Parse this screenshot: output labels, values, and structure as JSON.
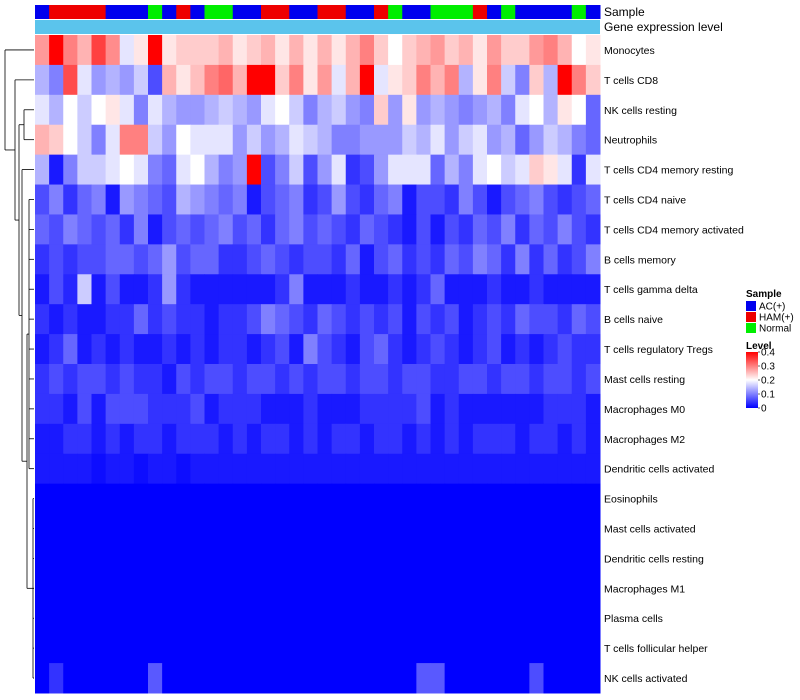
{
  "chart_data": {
    "type": "heatmap",
    "title": "",
    "annotation_tracks": [
      "Sample",
      "Gene expression level"
    ],
    "sample_groups": [
      "AC(+)",
      "HAM(+)",
      "HAM(+)",
      "HAM(+)",
      "HAM(+)",
      "AC(+)",
      "AC(+)",
      "AC(+)",
      "Normal",
      "AC(+)",
      "HAM(+)",
      "AC(+)",
      "Normal",
      "Normal",
      "AC(+)",
      "AC(+)",
      "HAM(+)",
      "HAM(+)",
      "AC(+)",
      "AC(+)",
      "HAM(+)",
      "HAM(+)",
      "AC(+)",
      "AC(+)",
      "HAM(+)",
      "Normal",
      "AC(+)",
      "AC(+)",
      "Normal",
      "Normal",
      "Normal",
      "HAM(+)",
      "AC(+)",
      "Normal",
      "AC(+)",
      "AC(+)",
      "AC(+)",
      "AC(+)",
      "Normal",
      "AC(+)"
    ],
    "rows": [
      "Monocytes",
      "T cells CD8",
      "NK cells resting",
      "Neutrophils",
      "T cells CD4 memory resting",
      "T cells CD4 naive",
      "T cells CD4 memory activated",
      "B cells memory",
      "T cells gamma delta",
      "B cells naive",
      "T cells regulatory  Tregs",
      "Mast cells resting",
      "Macrophages M0",
      "Macrophages M2",
      "Dendritic cells activated",
      "Eosinophils",
      "Mast cells activated",
      "Dendritic cells resting",
      "Macrophages M1",
      "Plasma cells",
      "T cells follicular helper",
      "NK cells activated"
    ],
    "values": [
      [
        0.28,
        0.4,
        0.3,
        0.26,
        0.35,
        0.29,
        0.18,
        0.22,
        0.4,
        0.22,
        0.24,
        0.24,
        0.24,
        0.26,
        0.22,
        0.24,
        0.26,
        0.22,
        0.26,
        0.22,
        0.26,
        0.22,
        0.26,
        0.3,
        0.24,
        0.2,
        0.24,
        0.26,
        0.28,
        0.24,
        0.26,
        0.22,
        0.28,
        0.24,
        0.24,
        0.28,
        0.3,
        0.26,
        0.2,
        0.22
      ],
      [
        0.14,
        0.1,
        0.34,
        0.18,
        0.12,
        0.14,
        0.12,
        0.16,
        0.06,
        0.26,
        0.22,
        0.25,
        0.3,
        0.32,
        0.26,
        0.4,
        0.4,
        0.24,
        0.3,
        0.22,
        0.28,
        0.18,
        0.26,
        0.4,
        0.18,
        0.22,
        0.24,
        0.3,
        0.26,
        0.3,
        0.14,
        0.22,
        0.3,
        0.16,
        0.1,
        0.24,
        0.14,
        0.4,
        0.3,
        0.24
      ],
      [
        0.18,
        0.14,
        0.2,
        0.16,
        0.2,
        0.22,
        0.18,
        0.1,
        0.18,
        0.14,
        0.12,
        0.12,
        0.14,
        0.16,
        0.14,
        0.12,
        0.18,
        0.2,
        0.16,
        0.1,
        0.14,
        0.16,
        0.12,
        0.1,
        0.24,
        0.12,
        0.22,
        0.12,
        0.14,
        0.12,
        0.1,
        0.12,
        0.14,
        0.1,
        0.18,
        0.2,
        0.14,
        0.22,
        0.2,
        0.08
      ],
      [
        0.26,
        0.24,
        0.2,
        0.16,
        0.1,
        0.18,
        0.3,
        0.3,
        0.16,
        0.12,
        0.2,
        0.18,
        0.18,
        0.18,
        0.12,
        0.16,
        0.12,
        0.14,
        0.18,
        0.16,
        0.14,
        0.1,
        0.1,
        0.12,
        0.12,
        0.12,
        0.16,
        0.14,
        0.18,
        0.12,
        0.16,
        0.18,
        0.12,
        0.14,
        0.08,
        0.12,
        0.16,
        0.14,
        0.1,
        0.08
      ],
      [
        0.14,
        0.02,
        0.1,
        0.16,
        0.16,
        0.18,
        0.2,
        0.18,
        0.1,
        0.08,
        0.18,
        0.2,
        0.14,
        0.1,
        0.12,
        0.4,
        0.06,
        0.1,
        0.16,
        0.06,
        0.12,
        0.18,
        0.04,
        0.06,
        0.12,
        0.18,
        0.18,
        0.18,
        0.08,
        0.14,
        0.1,
        0.18,
        0.2,
        0.16,
        0.18,
        0.24,
        0.22,
        0.18,
        0.04,
        0.18
      ],
      [
        0.06,
        0.1,
        0.04,
        0.08,
        0.1,
        0.02,
        0.12,
        0.1,
        0.08,
        0.06,
        0.14,
        0.12,
        0.1,
        0.08,
        0.1,
        0.02,
        0.06,
        0.08,
        0.1,
        0.04,
        0.06,
        0.12,
        0.06,
        0.04,
        0.08,
        0.1,
        0.02,
        0.06,
        0.06,
        0.04,
        0.1,
        0.06,
        0.02,
        0.06,
        0.08,
        0.1,
        0.06,
        0.04,
        0.06,
        0.08
      ],
      [
        0.08,
        0.06,
        0.1,
        0.08,
        0.06,
        0.08,
        0.04,
        0.1,
        0.02,
        0.06,
        0.08,
        0.06,
        0.08,
        0.1,
        0.06,
        0.08,
        0.04,
        0.08,
        0.1,
        0.06,
        0.08,
        0.06,
        0.04,
        0.08,
        0.06,
        0.04,
        0.02,
        0.06,
        0.02,
        0.06,
        0.04,
        0.08,
        0.06,
        0.1,
        0.04,
        0.08,
        0.06,
        0.1,
        0.06,
        0.04
      ],
      [
        0.04,
        0.06,
        0.04,
        0.06,
        0.06,
        0.08,
        0.08,
        0.06,
        0.08,
        0.12,
        0.06,
        0.08,
        0.08,
        0.04,
        0.04,
        0.06,
        0.08,
        0.06,
        0.04,
        0.06,
        0.06,
        0.04,
        0.08,
        0.02,
        0.06,
        0.08,
        0.04,
        0.06,
        0.04,
        0.08,
        0.06,
        0.1,
        0.08,
        0.04,
        0.1,
        0.04,
        0.08,
        0.04,
        0.06,
        0.1
      ],
      [
        0.02,
        0.06,
        0.03,
        0.16,
        0.02,
        0.06,
        0.02,
        0.02,
        0.04,
        0.12,
        0.04,
        0.02,
        0.02,
        0.02,
        0.02,
        0.02,
        0.02,
        0.04,
        0.1,
        0.02,
        0.02,
        0.02,
        0.04,
        0.02,
        0.02,
        0.04,
        0.02,
        0.04,
        0.08,
        0.02,
        0.02,
        0.02,
        0.04,
        0.02,
        0.02,
        0.04,
        0.02,
        0.02,
        0.02,
        0.02
      ],
      [
        0.04,
        0.02,
        0.04,
        0.02,
        0.02,
        0.04,
        0.04,
        0.08,
        0.04,
        0.06,
        0.04,
        0.04,
        0.02,
        0.04,
        0.04,
        0.06,
        0.1,
        0.08,
        0.06,
        0.04,
        0.08,
        0.06,
        0.04,
        0.06,
        0.04,
        0.06,
        0.02,
        0.06,
        0.04,
        0.06,
        0.02,
        0.04,
        0.06,
        0.04,
        0.08,
        0.06,
        0.06,
        0.04,
        0.08,
        0.06
      ],
      [
        0.02,
        0.04,
        0.08,
        0.02,
        0.04,
        0.02,
        0.04,
        0.02,
        0.02,
        0.04,
        0.02,
        0.04,
        0.02,
        0.04,
        0.04,
        0.02,
        0.04,
        0.06,
        0.02,
        0.1,
        0.06,
        0.04,
        0.02,
        0.06,
        0.08,
        0.04,
        0.02,
        0.04,
        0.06,
        0.04,
        0.02,
        0.04,
        0.06,
        0.02,
        0.04,
        0.02,
        0.04,
        0.06,
        0.04,
        0.04
      ],
      [
        0.04,
        0.06,
        0.04,
        0.06,
        0.06,
        0.04,
        0.06,
        0.04,
        0.04,
        0.02,
        0.06,
        0.04,
        0.06,
        0.06,
        0.04,
        0.06,
        0.06,
        0.04,
        0.06,
        0.04,
        0.06,
        0.06,
        0.04,
        0.06,
        0.06,
        0.04,
        0.06,
        0.06,
        0.04,
        0.04,
        0.06,
        0.06,
        0.04,
        0.06,
        0.06,
        0.04,
        0.06,
        0.06,
        0.04,
        0.06
      ],
      [
        0.04,
        0.04,
        0.02,
        0.06,
        0.02,
        0.06,
        0.06,
        0.06,
        0.04,
        0.04,
        0.04,
        0.06,
        0.02,
        0.04,
        0.04,
        0.04,
        0.02,
        0.02,
        0.02,
        0.04,
        0.02,
        0.02,
        0.02,
        0.04,
        0.04,
        0.04,
        0.04,
        0.06,
        0.02,
        0.04,
        0.02,
        0.02,
        0.02,
        0.02,
        0.02,
        0.02,
        0.04,
        0.04,
        0.04,
        0.02
      ],
      [
        0.02,
        0.02,
        0.04,
        0.04,
        0.02,
        0.04,
        0.02,
        0.04,
        0.04,
        0.02,
        0.04,
        0.04,
        0.04,
        0.02,
        0.04,
        0.02,
        0.04,
        0.04,
        0.02,
        0.04,
        0.02,
        0.04,
        0.04,
        0.02,
        0.04,
        0.04,
        0.02,
        0.04,
        0.02,
        0.04,
        0.02,
        0.04,
        0.04,
        0.04,
        0.02,
        0.04,
        0.04,
        0.02,
        0.04,
        0.02
      ],
      [
        0.02,
        0.02,
        0.02,
        0.02,
        0.01,
        0.02,
        0.02,
        0.01,
        0.02,
        0.02,
        0.01,
        0.02,
        0.02,
        0.02,
        0.02,
        0.02,
        0.02,
        0.02,
        0.02,
        0.02,
        0.02,
        0.02,
        0.02,
        0.02,
        0.02,
        0.02,
        0.02,
        0.02,
        0.02,
        0.02,
        0.02,
        0.02,
        0.02,
        0.02,
        0.02,
        0.02,
        0.02,
        0.02,
        0.02,
        0.02
      ],
      [
        0,
        0,
        0,
        0,
        0,
        0,
        0,
        0,
        0,
        0,
        0,
        0,
        0,
        0,
        0,
        0,
        0,
        0,
        0,
        0,
        0,
        0,
        0,
        0,
        0,
        0,
        0,
        0,
        0,
        0,
        0,
        0,
        0,
        0,
        0,
        0,
        0,
        0,
        0,
        0
      ],
      [
        0,
        0,
        0,
        0,
        0,
        0,
        0,
        0,
        0,
        0,
        0,
        0,
        0,
        0,
        0,
        0,
        0,
        0,
        0,
        0,
        0,
        0,
        0,
        0,
        0,
        0,
        0,
        0,
        0,
        0,
        0,
        0,
        0,
        0,
        0,
        0,
        0,
        0,
        0,
        0
      ],
      [
        0,
        0,
        0,
        0,
        0,
        0,
        0,
        0,
        0,
        0,
        0,
        0,
        0,
        0,
        0,
        0,
        0,
        0,
        0,
        0,
        0,
        0,
        0,
        0,
        0,
        0,
        0,
        0,
        0,
        0,
        0,
        0,
        0,
        0,
        0,
        0,
        0,
        0,
        0,
        0
      ],
      [
        0,
        0,
        0,
        0,
        0,
        0,
        0,
        0,
        0,
        0,
        0,
        0,
        0,
        0,
        0,
        0,
        0,
        0,
        0,
        0,
        0,
        0,
        0,
        0,
        0,
        0,
        0,
        0,
        0,
        0,
        0,
        0,
        0,
        0,
        0,
        0,
        0,
        0,
        0,
        0
      ],
      [
        0,
        0,
        0,
        0,
        0,
        0,
        0,
        0,
        0,
        0,
        0,
        0,
        0,
        0,
        0,
        0,
        0,
        0,
        0,
        0,
        0,
        0,
        0,
        0,
        0,
        0,
        0,
        0,
        0,
        0,
        0,
        0,
        0,
        0,
        0,
        0,
        0,
        0,
        0,
        0
      ],
      [
        0,
        0,
        0,
        0,
        0,
        0,
        0,
        0,
        0,
        0,
        0,
        0,
        0,
        0,
        0,
        0,
        0,
        0,
        0,
        0,
        0,
        0,
        0,
        0,
        0,
        0,
        0,
        0,
        0,
        0,
        0,
        0,
        0,
        0,
        0,
        0,
        0,
        0,
        0,
        0
      ],
      [
        0,
        0.04,
        0,
        0,
        0,
        0,
        0,
        0,
        0.07,
        0,
        0,
        0,
        0,
        0,
        0,
        0,
        0,
        0,
        0,
        0,
        0,
        0,
        0,
        0,
        0,
        0,
        0,
        0.07,
        0.07,
        0,
        0,
        0,
        0,
        0,
        0,
        0.06,
        0,
        0,
        0,
        0
      ]
    ],
    "color_scale": {
      "min": 0,
      "mid": 0.2,
      "max": 0.4,
      "low": "#0000ff",
      "midColor": "#ffffff",
      "high": "#ff0000"
    },
    "group_colors": {
      "AC(+)": "#0000ee",
      "HAM(+)": "#ee0000",
      "Normal": "#00ee00"
    },
    "expression_bar_color": "#5bc4ec",
    "legend": {
      "sample_title": "Sample",
      "sample_entries": [
        "AC(+)",
        "HAM(+)",
        "Normal"
      ],
      "level_title": "Level",
      "level_ticks": [
        0.4,
        0.3,
        0.2,
        0.1,
        0
      ],
      "placement": "right"
    },
    "dendrogram": "rows"
  }
}
